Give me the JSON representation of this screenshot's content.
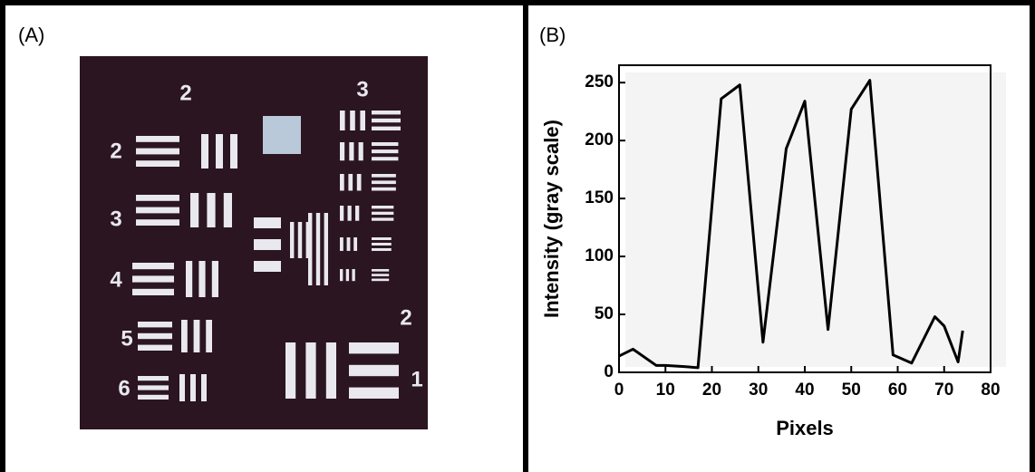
{
  "panel_a": {
    "label": "(A)",
    "target_labels": [
      "2",
      "3",
      "2",
      "3",
      "4",
      "5",
      "6",
      "2",
      "1"
    ]
  },
  "chart_data": {
    "type": "line",
    "panel_label": "(B)",
    "x_label": "Pixels",
    "y_label": "Intensity (gray scale)",
    "x": [
      0,
      3,
      8,
      10,
      14,
      17,
      22,
      26,
      31,
      36,
      40,
      45,
      50,
      54,
      59,
      63,
      68,
      70,
      73,
      74
    ],
    "values": [
      14,
      20,
      6,
      6,
      5,
      4,
      236,
      248,
      26,
      193,
      234,
      37,
      227,
      252,
      15,
      8,
      48,
      40,
      9,
      36
    ],
    "color": "#000000",
    "xlim": [
      0,
      80
    ],
    "xticks": [
      0,
      10,
      20,
      30,
      40,
      50,
      60,
      70,
      80
    ],
    "ylim": [
      0,
      265
    ],
    "yticks": [
      0,
      50,
      100,
      150,
      200,
      250
    ]
  }
}
